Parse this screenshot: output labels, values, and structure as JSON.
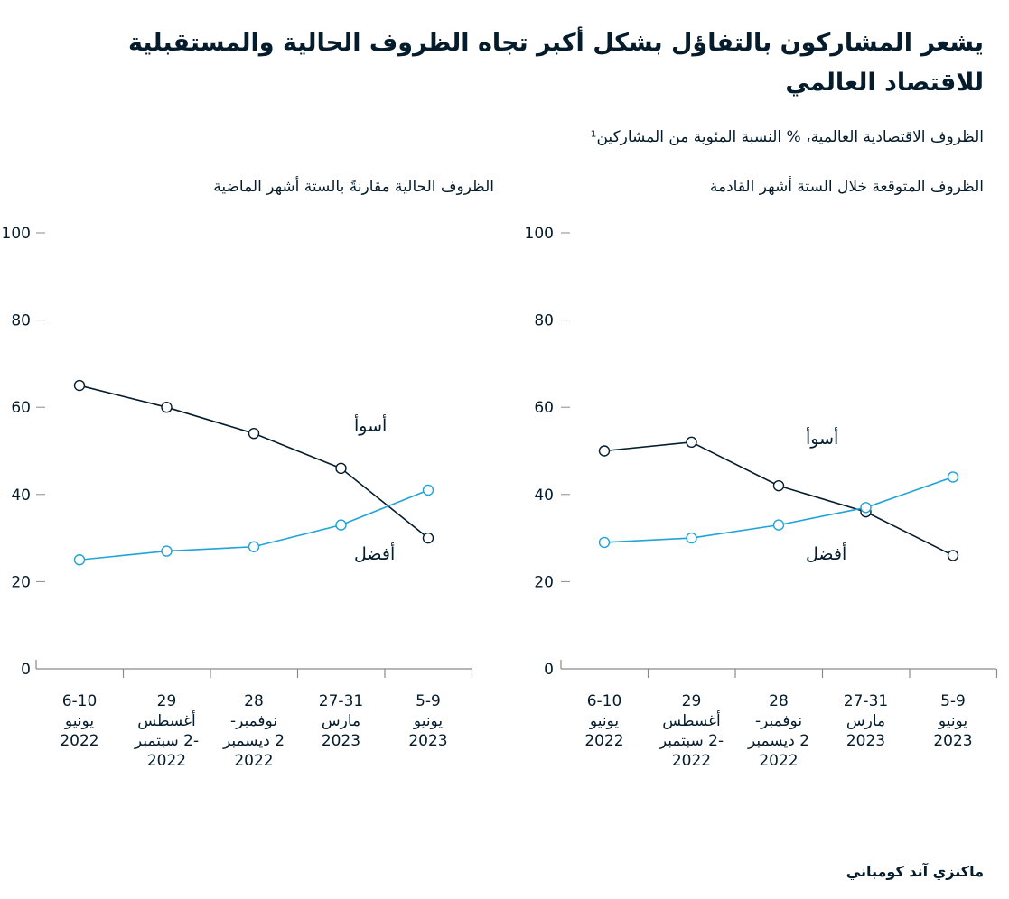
{
  "title": "يشعر المشاركون بالتفاؤل بشكل أكبر تجاه الظروف الحالية والمستقبلية للاقتصاد العالمي",
  "subtitle": "الظروف الاقتصادية العالمية، % النسبة المئوية من المشاركين¹",
  "footer": "ماكنزي آند كومباني",
  "colors": {
    "worse": "#051c2c",
    "better": "#1fa3d8",
    "axis": "#8a8a8a"
  },
  "chart_data": [
    {
      "type": "line",
      "title": "الظروف الحالية مقارنةً بالستة أشهر الماضية",
      "categories": [
        [
          "6-10",
          "يونيو",
          "2022"
        ],
        [
          "29",
          "أغسطس",
          "-2 سبتمبر",
          "2022"
        ],
        [
          "28",
          "نوفمبر-",
          "2 ديسمبر",
          "2022"
        ],
        [
          "27-31",
          "مارس",
          "2023"
        ],
        [
          "5-9",
          "يونيو",
          "2023"
        ]
      ],
      "ylim": [
        0,
        100
      ],
      "yticks": [
        0,
        20,
        40,
        60,
        80,
        100
      ],
      "series": [
        {
          "name": "أسوأ",
          "key": "worse",
          "values": [
            65,
            60,
            54,
            46,
            30
          ]
        },
        {
          "name": "أفضل",
          "key": "better",
          "values": [
            25,
            27,
            28,
            33,
            41
          ]
        }
      ]
    },
    {
      "type": "line",
      "title": "الظروف المتوقعة خلال الستة أشهر القادمة",
      "categories": [
        [
          "6-10",
          "يونيو",
          "2022"
        ],
        [
          "29",
          "أغسطس",
          "-2 سبتمبر",
          "2022"
        ],
        [
          "28",
          "نوفمبر-",
          "2 ديسمبر",
          "2022"
        ],
        [
          "27-31",
          "مارس",
          "2023"
        ],
        [
          "5-9",
          "يونيو",
          "2023"
        ]
      ],
      "ylim": [
        0,
        100
      ],
      "yticks": [
        0,
        20,
        40,
        60,
        80,
        100
      ],
      "series": [
        {
          "name": "أسوأ",
          "key": "worse",
          "values": [
            50,
            52,
            42,
            36,
            26
          ]
        },
        {
          "name": "أفضل",
          "key": "better",
          "values": [
            29,
            30,
            33,
            37,
            44
          ]
        }
      ]
    }
  ]
}
